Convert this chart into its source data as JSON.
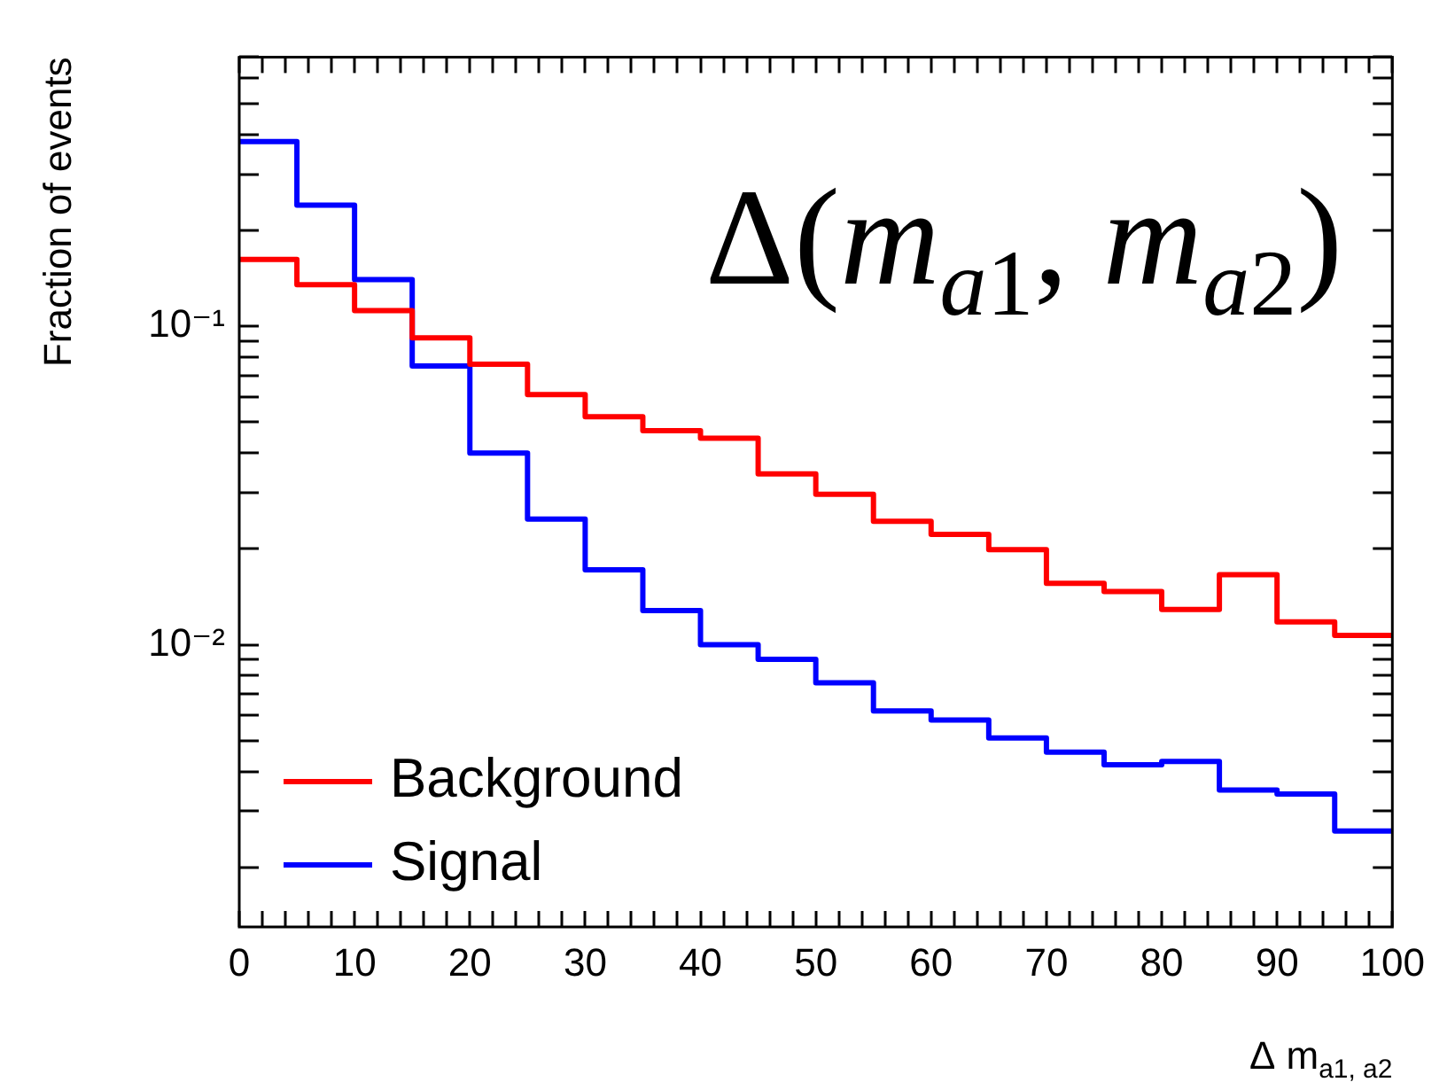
{
  "chart_data": {
    "type": "histogram",
    "title": "Δ(m$_{a1}$, m$_{a2}$)",
    "xlabel": "Δ m$_{a1, a2}$",
    "ylabel": "Fraction of events",
    "log": "y",
    "legend": "bottom left",
    "bins": [
      0,
      5,
      10,
      15,
      20,
      25,
      30,
      35,
      40,
      45,
      50,
      55,
      60,
      65,
      70,
      75,
      80,
      85,
      90,
      95,
      100
    ],
    "series": [
      {
        "name": "Background",
        "color": "#ff0000",
        "values": [
          0.162,
          0.135,
          0.112,
          0.092,
          0.076,
          0.061,
          0.052,
          0.047,
          0.0445,
          0.0344,
          0.0297,
          0.0244,
          0.0222,
          0.0199,
          0.0156,
          0.0147,
          0.0129,
          0.0166,
          0.0118,
          0.0107
        ]
      },
      {
        "name": "Signal",
        "color": "#0000ff",
        "values": [
          0.38,
          0.24,
          0.14,
          0.075,
          0.04,
          0.0248,
          0.0172,
          0.0128,
          0.01,
          0.009,
          0.0076,
          0.0062,
          0.0058,
          0.0051,
          0.0046,
          0.0042,
          0.0043,
          0.0035,
          0.0034,
          0.0026
        ]
      }
    ],
    "xlim": [
      0,
      100
    ],
    "xticks": [
      0,
      {
        "value": 2,
        "label": null
      },
      {
        "value": 4,
        "label": null
      },
      {
        "value": 6,
        "label": null
      },
      {
        "value": 8,
        "label": null
      },
      10,
      {
        "value": 12,
        "label": null
      },
      {
        "value": 14,
        "label": null
      },
      {
        "value": 16,
        "label": null
      },
      {
        "value": 18,
        "label": null
      },
      20,
      {
        "value": 22,
        "label": null
      },
      {
        "value": 24,
        "label": null
      },
      {
        "value": 26,
        "label": null
      },
      {
        "value": 28,
        "label": null
      },
      30,
      {
        "value": 32,
        "label": null
      },
      {
        "value": 34,
        "label": null
      },
      {
        "value": 36,
        "label": null
      },
      {
        "value": 38,
        "label": null
      },
      40,
      {
        "value": 42,
        "label": null
      },
      {
        "value": 44,
        "label": null
      },
      {
        "value": 46,
        "label": null
      },
      {
        "value": 48,
        "label": null
      },
      50,
      {
        "value": 52,
        "label": null
      },
      {
        "value": 54,
        "label": null
      },
      {
        "value": 56,
        "label": null
      },
      {
        "value": 58,
        "label": null
      },
      60,
      {
        "value": 62,
        "label": null
      },
      {
        "value": 64,
        "label": null
      },
      {
        "value": 66,
        "label": null
      },
      {
        "value": 68,
        "label": null
      },
      70,
      {
        "value": 72,
        "label": null
      },
      {
        "value": 74,
        "label": null
      },
      {
        "value": 76,
        "label": null
      },
      {
        "value": 78,
        "label": null
      },
      80,
      {
        "value": 82,
        "label": null
      },
      {
        "value": 84,
        "label": null
      },
      {
        "value": 86,
        "label": null
      },
      {
        "value": 88,
        "label": null
      },
      90,
      {
        "value": 92,
        "label": null
      },
      {
        "value": 94,
        "label": null
      },
      {
        "value": 96,
        "label": null
      },
      {
        "value": 98,
        "label": null
      },
      100
    ],
    "ylim": [
      0.0013,
      0.7
    ],
    "yticks": [
      {
        "value": 0.002,
        "label": null
      },
      {
        "value": 0.003,
        "label": null
      },
      {
        "value": 0.004,
        "label": null
      },
      {
        "value": 0.005,
        "label": null
      },
      {
        "value": 0.006,
        "label": null
      },
      {
        "value": 0.007,
        "label": null
      },
      {
        "value": 0.008,
        "label": null
      },
      {
        "value": 0.009,
        "label": null
      },
      {
        "value": 0.01,
        "label": "10⁻²"
      },
      {
        "value": 0.02,
        "label": null
      },
      {
        "value": 0.03,
        "label": null
      },
      {
        "value": 0.04,
        "label": null
      },
      {
        "value": 0.05,
        "label": null
      },
      {
        "value": 0.06,
        "label": null
      },
      {
        "value": 0.07,
        "label": null
      },
      {
        "value": 0.08,
        "label": null
      },
      {
        "value": 0.09,
        "label": null
      },
      {
        "value": 0.1,
        "label": "10⁻¹"
      },
      {
        "value": 0.2,
        "label": null
      },
      {
        "value": 0.3,
        "label": null
      },
      {
        "value": 0.4,
        "label": null
      },
      {
        "value": 0.5,
        "label": null
      },
      {
        "value": 0.6,
        "label": null
      },
      {
        "value": 0.7,
        "label": null
      }
    ]
  }
}
